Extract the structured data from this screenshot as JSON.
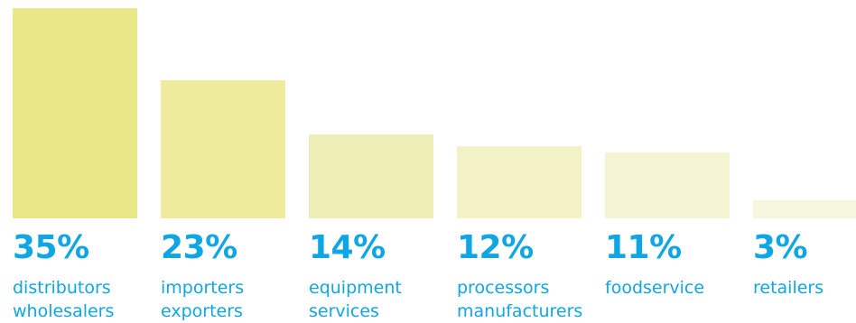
{
  "chart_data": {
    "type": "bar",
    "categories": [
      [
        "distributors",
        "wholesalers"
      ],
      [
        "importers",
        "exporters"
      ],
      [
        "equipment",
        "services"
      ],
      [
        "processors",
        "manufacturers"
      ],
      [
        "foodservice"
      ],
      [
        "retailers"
      ]
    ],
    "values": [
      35,
      23,
      14,
      12,
      11,
      3
    ],
    "value_labels": [
      "35%",
      "23%",
      "14%",
      "12%",
      "11%",
      "3%"
    ],
    "unit": "%",
    "ylim": [
      0,
      35
    ],
    "grid": false,
    "legend": "none",
    "bar_colors": [
      "#e9e787",
      "#eeeb9d",
      "#efeeb6",
      "#f3f2c6",
      "#f4f4d3",
      "#f6f6df"
    ],
    "label_color": "#10a6e3"
  }
}
